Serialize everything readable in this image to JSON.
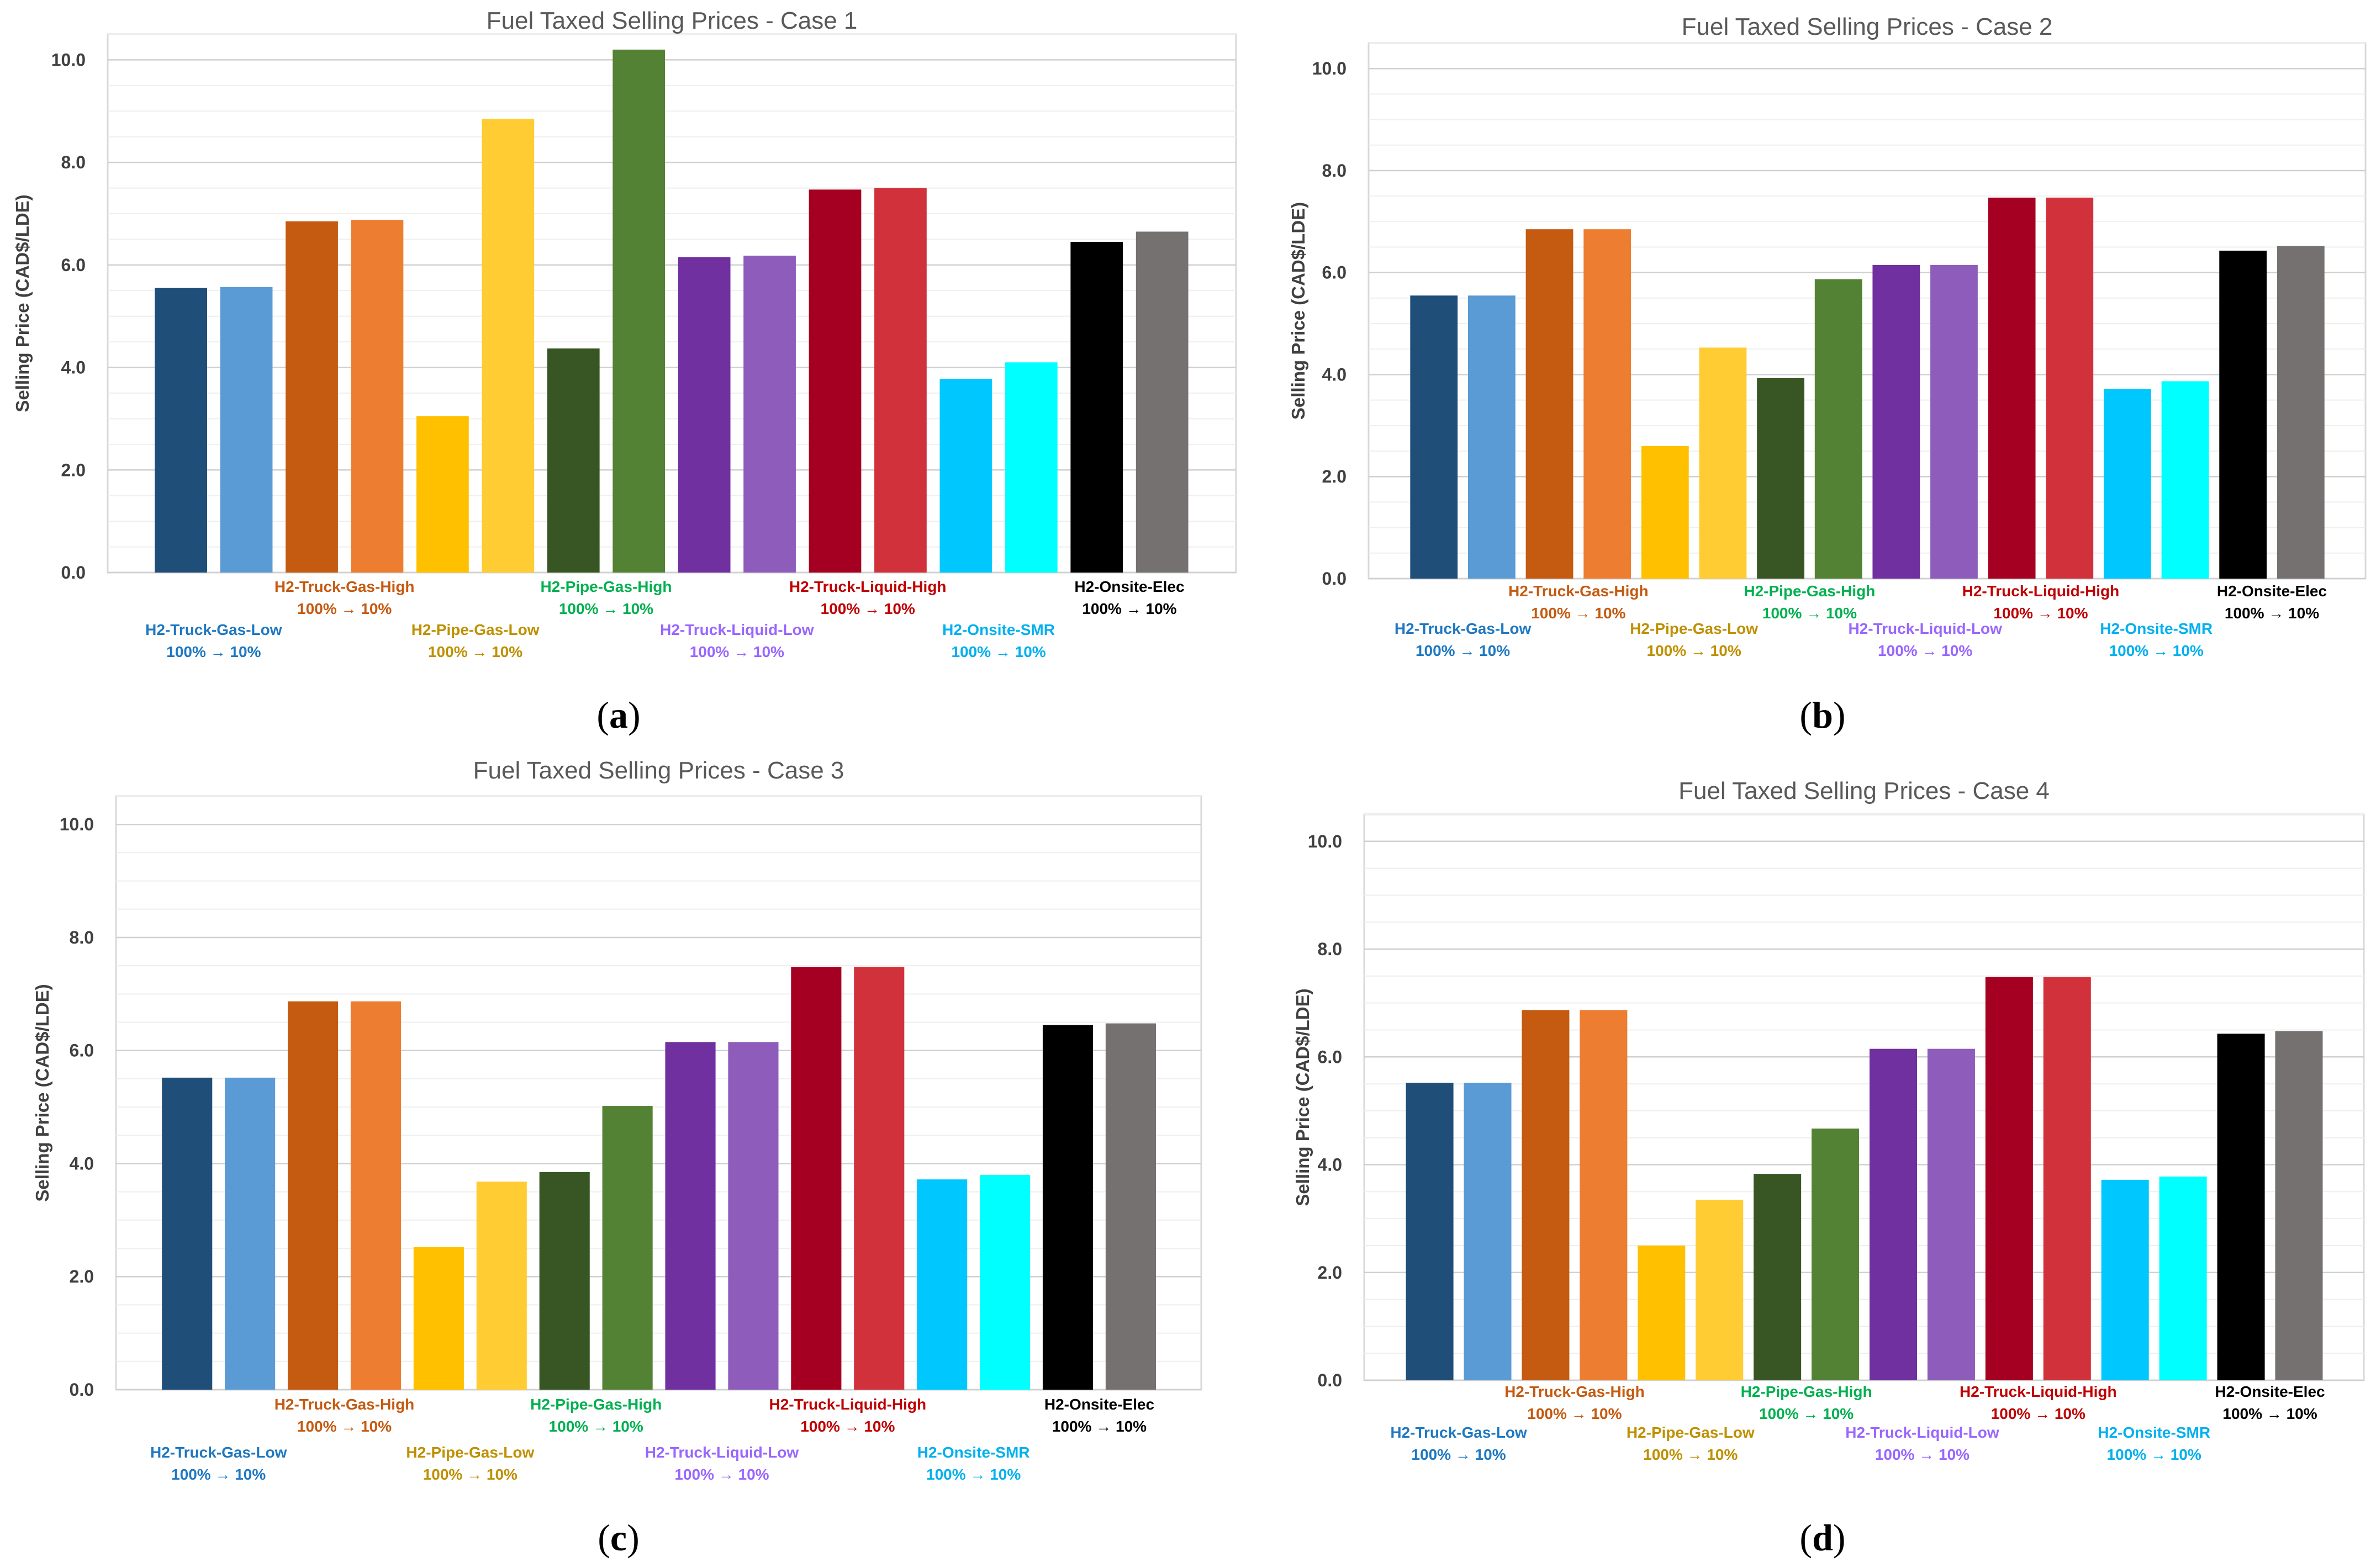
{
  "chart_data": [
    {
      "type": "bar",
      "panel_letter": "a",
      "title": "Fuel Taxed Selling Prices - Case 1",
      "ylabel": "Selling Price (CAD$/LDE)",
      "xlabel": "",
      "ylim": [
        0,
        10.5
      ],
      "yticks": [
        "0.0",
        "2.0",
        "4.0",
        "6.0",
        "8.0",
        "10.0"
      ],
      "groups": [
        {
          "name": "H2-Truck-Gas-Low",
          "sublabel": "100% → 10%",
          "label_color": "#1F78C1",
          "label_row": "low",
          "colors": [
            "#1F4E79",
            "#5B9BD5"
          ],
          "values": [
            5.55,
            5.57
          ]
        },
        {
          "name": "H2-Truck-Gas-High",
          "sublabel": "100% → 10%",
          "label_color": "#C55A11",
          "label_row": "high",
          "colors": [
            "#C55A11",
            "#ED7D31"
          ],
          "values": [
            6.85,
            6.88
          ]
        },
        {
          "name": "H2-Pipe-Gas-Low",
          "sublabel": "100% → 10%",
          "label_color": "#BF9000",
          "label_row": "low",
          "colors": [
            "#FFC000",
            "#FFCC33"
          ],
          "values": [
            3.05,
            8.85
          ]
        },
        {
          "name": "H2-Pipe-Gas-High",
          "sublabel": "100% → 10%",
          "label_color": "#00B050",
          "label_row": "high",
          "colors": [
            "#375623",
            "#548235"
          ],
          "values": [
            4.37,
            10.2
          ]
        },
        {
          "name": "H2-Truck-Liquid-Low",
          "sublabel": "100% → 10%",
          "label_color": "#9966FF",
          "label_row": "low",
          "colors": [
            "#7030A0",
            "#8E5CBA"
          ],
          "values": [
            6.15,
            6.18
          ]
        },
        {
          "name": "H2-Truck-Liquid-High",
          "sublabel": "100% → 10%",
          "label_color": "#C00000",
          "label_row": "high",
          "colors": [
            "#A50021",
            "#D0313A"
          ],
          "values": [
            7.47,
            7.5
          ]
        },
        {
          "name": "H2-Onsite-SMR",
          "sublabel": "100% → 10%",
          "label_color": "#00B0F0",
          "label_row": "low",
          "colors": [
            "#00C8FF",
            "#00FFFF"
          ],
          "values": [
            3.78,
            4.1
          ]
        },
        {
          "name": "H2-Onsite-Elec",
          "sublabel": "100% → 10%",
          "label_color": "#000000",
          "label_row": "high",
          "colors": [
            "#000000",
            "#767171"
          ],
          "values": [
            6.45,
            6.65
          ]
        }
      ]
    },
    {
      "type": "bar",
      "panel_letter": "b",
      "title": "Fuel Taxed Selling Prices - Case 2",
      "ylabel": "Selling Price (CAD$/LDE)",
      "xlabel": "",
      "ylim": [
        0,
        10.5
      ],
      "yticks": [
        "0.0",
        "2.0",
        "4.0",
        "6.0",
        "8.0",
        "10.0"
      ],
      "groups": [
        {
          "name": "H2-Truck-Gas-Low",
          "sublabel": "100% → 10%",
          "label_color": "#1F78C1",
          "label_row": "low",
          "colors": [
            "#1F4E79",
            "#5B9BD5"
          ],
          "values": [
            5.55,
            5.55
          ]
        },
        {
          "name": "H2-Truck-Gas-High",
          "sublabel": "100% → 10%",
          "label_color": "#C55A11",
          "label_row": "high",
          "colors": [
            "#C55A11",
            "#ED7D31"
          ],
          "values": [
            6.85,
            6.85
          ]
        },
        {
          "name": "H2-Pipe-Gas-Low",
          "sublabel": "100% → 10%",
          "label_color": "#BF9000",
          "label_row": "low",
          "colors": [
            "#FFC000",
            "#FFCC33"
          ],
          "values": [
            2.6,
            4.53
          ]
        },
        {
          "name": "H2-Pipe-Gas-High",
          "sublabel": "100% → 10%",
          "label_color": "#00B050",
          "label_row": "high",
          "colors": [
            "#375623",
            "#548235"
          ],
          "values": [
            3.93,
            5.87
          ]
        },
        {
          "name": "H2-Truck-Liquid-Low",
          "sublabel": "100% → 10%",
          "label_color": "#9966FF",
          "label_row": "low",
          "colors": [
            "#7030A0",
            "#8E5CBA"
          ],
          "values": [
            6.15,
            6.15
          ]
        },
        {
          "name": "H2-Truck-Liquid-High",
          "sublabel": "100% → 10%",
          "label_color": "#C00000",
          "label_row": "high",
          "colors": [
            "#A50021",
            "#D0313A"
          ],
          "values": [
            7.47,
            7.47
          ]
        },
        {
          "name": "H2-Onsite-SMR",
          "sublabel": "100% → 10%",
          "label_color": "#00B0F0",
          "label_row": "low",
          "colors": [
            "#00C8FF",
            "#00FFFF"
          ],
          "values": [
            3.72,
            3.87
          ]
        },
        {
          "name": "H2-Onsite-Elec",
          "sublabel": "100% → 10%",
          "label_color": "#000000",
          "label_row": "high",
          "colors": [
            "#000000",
            "#767171"
          ],
          "values": [
            6.43,
            6.52
          ]
        }
      ]
    },
    {
      "type": "bar",
      "panel_letter": "c",
      "title": "Fuel Taxed Selling Prices - Case 3",
      "ylabel": "Selling Price (CAD$/LDE)",
      "xlabel": "",
      "ylim": [
        0,
        10.5
      ],
      "yticks": [
        "0.0",
        "2.0",
        "4.0",
        "6.0",
        "8.0",
        "10.0"
      ],
      "groups": [
        {
          "name": "H2-Truck-Gas-Low",
          "sublabel": "100% → 10%",
          "label_color": "#1F78C1",
          "label_row": "low",
          "colors": [
            "#1F4E79",
            "#5B9BD5"
          ],
          "values": [
            5.52,
            5.52
          ]
        },
        {
          "name": "H2-Truck-Gas-High",
          "sublabel": "100% → 10%",
          "label_color": "#C55A11",
          "label_row": "high",
          "colors": [
            "#C55A11",
            "#ED7D31"
          ],
          "values": [
            6.87,
            6.87
          ]
        },
        {
          "name": "H2-Pipe-Gas-Low",
          "sublabel": "100% → 10%",
          "label_color": "#BF9000",
          "label_row": "low",
          "colors": [
            "#FFC000",
            "#FFCC33"
          ],
          "values": [
            2.52,
            3.68
          ]
        },
        {
          "name": "H2-Pipe-Gas-High",
          "sublabel": "100% → 10%",
          "label_color": "#00B050",
          "label_row": "high",
          "colors": [
            "#375623",
            "#548235"
          ],
          "values": [
            3.85,
            5.02
          ]
        },
        {
          "name": "H2-Truck-Liquid-Low",
          "sublabel": "100% → 10%",
          "label_color": "#9966FF",
          "label_row": "low",
          "colors": [
            "#7030A0",
            "#8E5CBA"
          ],
          "values": [
            6.15,
            6.15
          ]
        },
        {
          "name": "H2-Truck-Liquid-High",
          "sublabel": "100% → 10%",
          "label_color": "#C00000",
          "label_row": "high",
          "colors": [
            "#A50021",
            "#D0313A"
          ],
          "values": [
            7.48,
            7.48
          ]
        },
        {
          "name": "H2-Onsite-SMR",
          "sublabel": "100% → 10%",
          "label_color": "#00B0F0",
          "label_row": "low",
          "colors": [
            "#00C8FF",
            "#00FFFF"
          ],
          "values": [
            3.72,
            3.8
          ]
        },
        {
          "name": "H2-Onsite-Elec",
          "sublabel": "100% → 10%",
          "label_color": "#000000",
          "label_row": "high",
          "colors": [
            "#000000",
            "#767171"
          ],
          "values": [
            6.45,
            6.48
          ]
        }
      ]
    },
    {
      "type": "bar",
      "panel_letter": "d",
      "title": "Fuel Taxed Selling Prices - Case 4",
      "ylabel": "Selling Price (CAD$/LDE)",
      "xlabel": "",
      "ylim": [
        0,
        10.5
      ],
      "yticks": [
        "0.0",
        "2.0",
        "4.0",
        "6.0",
        "8.0",
        "10.0"
      ],
      "groups": [
        {
          "name": "H2-Truck-Gas-Low",
          "sublabel": "100% → 10%",
          "label_color": "#1F78C1",
          "label_row": "low",
          "colors": [
            "#1F4E79",
            "#5B9BD5"
          ],
          "values": [
            5.52,
            5.52
          ]
        },
        {
          "name": "H2-Truck-Gas-High",
          "sublabel": "100% → 10%",
          "label_color": "#C55A11",
          "label_row": "high",
          "colors": [
            "#C55A11",
            "#ED7D31"
          ],
          "values": [
            6.87,
            6.87
          ]
        },
        {
          "name": "H2-Pipe-Gas-Low",
          "sublabel": "100% → 10%",
          "label_color": "#BF9000",
          "label_row": "low",
          "colors": [
            "#FFC000",
            "#FFCC33"
          ],
          "values": [
            2.5,
            3.35
          ]
        },
        {
          "name": "H2-Pipe-Gas-High",
          "sublabel": "100% → 10%",
          "label_color": "#00B050",
          "label_row": "high",
          "colors": [
            "#375623",
            "#548235"
          ],
          "values": [
            3.83,
            4.67
          ]
        },
        {
          "name": "H2-Truck-Liquid-Low",
          "sublabel": "100% → 10%",
          "label_color": "#9966FF",
          "label_row": "low",
          "colors": [
            "#7030A0",
            "#8E5CBA"
          ],
          "values": [
            6.15,
            6.15
          ]
        },
        {
          "name": "H2-Truck-Liquid-High",
          "sublabel": "100% → 10%",
          "label_color": "#C00000",
          "label_row": "high",
          "colors": [
            "#A50021",
            "#D0313A"
          ],
          "values": [
            7.48,
            7.48
          ]
        },
        {
          "name": "H2-Onsite-SMR",
          "sublabel": "100% → 10%",
          "label_color": "#00B0F0",
          "label_row": "low",
          "colors": [
            "#00C8FF",
            "#00FFFF"
          ],
          "values": [
            3.72,
            3.78
          ]
        },
        {
          "name": "H2-Onsite-Elec",
          "sublabel": "100% → 10%",
          "label_color": "#000000",
          "label_row": "high",
          "colors": [
            "#000000",
            "#767171"
          ],
          "values": [
            6.43,
            6.48
          ]
        }
      ]
    }
  ]
}
